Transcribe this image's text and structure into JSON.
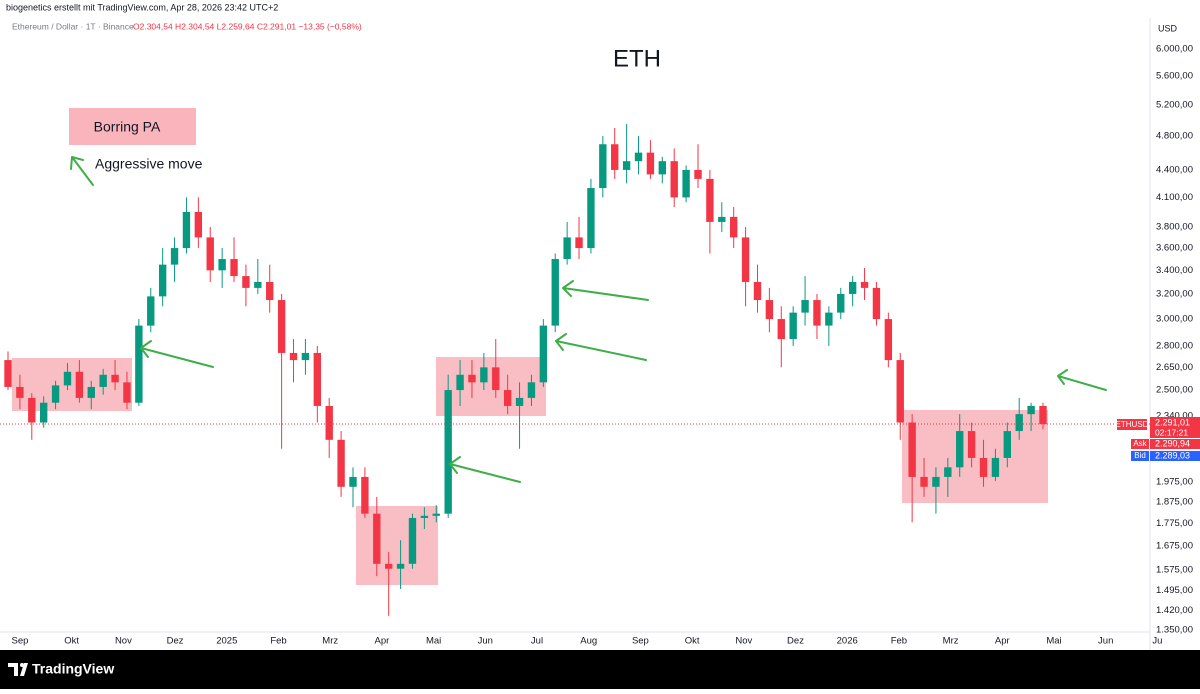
{
  "header": {
    "author_line": "biogenetics erstellt mit TradingView.com, Apr 28, 2026 23:42 UTC+2",
    "symbol": "Ethereum / Dollar · 1T · Binance",
    "quote": "O2.304,54 H2.304,54 L2.259,64 C2.291,01 −13,35 (−0,58%)"
  },
  "chart_data": {
    "type": "candlestick",
    "title": "ETH",
    "currency": "USD",
    "log_scale": true,
    "grid": false,
    "up_color": "#089981",
    "down_color": "#f23645",
    "candles": [
      [
        2700,
        2760,
        2500,
        2520
      ],
      [
        2520,
        2600,
        2380,
        2450
      ],
      [
        2450,
        2480,
        2200,
        2300
      ],
      [
        2300,
        2460,
        2270,
        2420
      ],
      [
        2420,
        2560,
        2380,
        2530
      ],
      [
        2530,
        2680,
        2500,
        2620
      ],
      [
        2620,
        2700,
        2420,
        2450
      ],
      [
        2450,
        2560,
        2380,
        2520
      ],
      [
        2520,
        2640,
        2470,
        2600
      ],
      [
        2600,
        2700,
        2500,
        2550
      ],
      [
        2550,
        2620,
        2380,
        2420
      ],
      [
        2420,
        3000,
        2400,
        2950
      ],
      [
        2950,
        3250,
        2900,
        3180
      ],
      [
        3180,
        3600,
        3100,
        3450
      ],
      [
        3450,
        3700,
        3300,
        3600
      ],
      [
        3600,
        4100,
        3550,
        3950
      ],
      [
        3950,
        4100,
        3600,
        3700
      ],
      [
        3700,
        3800,
        3300,
        3400
      ],
      [
        3400,
        3600,
        3250,
        3500
      ],
      [
        3500,
        3700,
        3300,
        3350
      ],
      [
        3350,
        3450,
        3100,
        3250
      ],
      [
        3250,
        3500,
        3200,
        3300
      ],
      [
        3300,
        3450,
        3050,
        3150
      ],
      [
        3150,
        3200,
        2150,
        2750
      ],
      [
        2750,
        2850,
        2550,
        2700
      ],
      [
        2700,
        2850,
        2600,
        2750
      ],
      [
        2750,
        2800,
        2300,
        2400
      ],
      [
        2400,
        2450,
        2100,
        2200
      ],
      [
        2200,
        2250,
        1900,
        1950
      ],
      [
        1950,
        2050,
        1850,
        2000
      ],
      [
        2000,
        2050,
        1800,
        1820
      ],
      [
        1820,
        1900,
        1550,
        1600
      ],
      [
        1600,
        1650,
        1400,
        1580
      ],
      [
        1580,
        1700,
        1500,
        1600
      ],
      [
        1600,
        1820,
        1580,
        1800
      ],
      [
        1800,
        1850,
        1750,
        1810
      ],
      [
        1810,
        1860,
        1780,
        1820
      ],
      [
        1820,
        2600,
        1800,
        2500
      ],
      [
        2500,
        2700,
        2400,
        2600
      ],
      [
        2600,
        2700,
        2450,
        2550
      ],
      [
        2550,
        2750,
        2500,
        2650
      ],
      [
        2650,
        2850,
        2450,
        2500
      ],
      [
        2500,
        2600,
        2350,
        2400
      ],
      [
        2400,
        2550,
        2150,
        2450
      ],
      [
        2450,
        2600,
        2400,
        2550
      ],
      [
        2550,
        3000,
        2520,
        2950
      ],
      [
        2950,
        3550,
        2900,
        3500
      ],
      [
        3500,
        3850,
        3450,
        3700
      ],
      [
        3700,
        3900,
        3500,
        3600
      ],
      [
        3600,
        4300,
        3550,
        4200
      ],
      [
        4200,
        4800,
        4100,
        4700
      ],
      [
        4700,
        4900,
        4300,
        4400
      ],
      [
        4400,
        4950,
        4250,
        4500
      ],
      [
        4500,
        4800,
        4350,
        4600
      ],
      [
        4600,
        4750,
        4300,
        4350
      ],
      [
        4350,
        4550,
        4250,
        4500
      ],
      [
        4500,
        4650,
        4000,
        4100
      ],
      [
        4100,
        4450,
        4050,
        4400
      ],
      [
        4400,
        4700,
        4200,
        4300
      ],
      [
        4300,
        4400,
        3550,
        3850
      ],
      [
        3850,
        4050,
        3750,
        3900
      ],
      [
        3900,
        4000,
        3600,
        3700
      ],
      [
        3700,
        3800,
        3100,
        3300
      ],
      [
        3300,
        3450,
        3050,
        3150
      ],
      [
        3150,
        3250,
        2900,
        3000
      ],
      [
        3000,
        3100,
        2650,
        2850
      ],
      [
        2850,
        3100,
        2800,
        3050
      ],
      [
        3050,
        3350,
        2950,
        3150
      ],
      [
        3150,
        3200,
        2850,
        2950
      ],
      [
        2950,
        3100,
        2800,
        3050
      ],
      [
        3050,
        3250,
        3000,
        3200
      ],
      [
        3200,
        3350,
        3100,
        3300
      ],
      [
        3300,
        3420,
        3150,
        3250
      ],
      [
        3250,
        3300,
        2950,
        3000
      ],
      [
        3000,
        3050,
        2650,
        2700
      ],
      [
        2700,
        2750,
        2200,
        2300
      ],
      [
        2300,
        2350,
        1780,
        2000
      ],
      [
        2000,
        2100,
        1900,
        1950
      ],
      [
        1950,
        2050,
        1820,
        2000
      ],
      [
        2000,
        2100,
        1900,
        2050
      ],
      [
        2050,
        2350,
        2000,
        2250
      ],
      [
        2250,
        2300,
        2050,
        2100
      ],
      [
        2100,
        2200,
        1950,
        2000
      ],
      [
        2000,
        2150,
        1980,
        2100
      ],
      [
        2100,
        2300,
        2050,
        2250
      ],
      [
        2250,
        2450,
        2200,
        2350
      ],
      [
        2350,
        2420,
        2250,
        2400
      ],
      [
        2400,
        2420,
        2260,
        2291.01
      ]
    ],
    "xtick_labels": [
      "Sep",
      "Okt",
      "Nov",
      "Dez",
      "2025",
      "Feb",
      "Mrz",
      "Apr",
      "Mai",
      "Jun",
      "Jul",
      "Aug",
      "Sep",
      "Okt",
      "Nov",
      "Dez",
      "2026",
      "Feb",
      "Mrz",
      "Apr",
      "Mai",
      "Jun",
      "Ju"
    ],
    "ylim": [
      1343,
      6500
    ],
    "yticks": [
      {
        "value": 6000,
        "label": "6.000,00"
      },
      {
        "value": 5600,
        "label": "5.600,00"
      },
      {
        "value": 5200,
        "label": "5.200,00"
      },
      {
        "value": 4800,
        "label": "4.800,00"
      },
      {
        "value": 4400,
        "label": "4.400,00"
      },
      {
        "value": 4100,
        "label": "4.100,00"
      },
      {
        "value": 3800,
        "label": "3.800,00"
      },
      {
        "value": 3600,
        "label": "3.600,00"
      },
      {
        "value": 3400,
        "label": "3.400,00"
      },
      {
        "value": 3200,
        "label": "3.200,00"
      },
      {
        "value": 3000,
        "label": "3.000,00"
      },
      {
        "value": 2800,
        "label": "2.800,00"
      },
      {
        "value": 2650,
        "label": "2.650,00"
      },
      {
        "value": 2500,
        "label": "2.500,00"
      },
      {
        "value": 2340,
        "label": "2.340,00"
      },
      {
        "value": 1975,
        "label": "1.975,00"
      },
      {
        "value": 1875,
        "label": "1.875,00"
      },
      {
        "value": 1775,
        "label": "1.775,00"
      },
      {
        "value": 1675,
        "label": "1.675,00"
      },
      {
        "value": 1575,
        "label": "1.575,00"
      },
      {
        "value": 1495,
        "label": "1.495,00"
      },
      {
        "value": 1420,
        "label": "1.420,00"
      },
      {
        "value": 1350,
        "label": "1.350,00"
      }
    ],
    "annotations": {
      "legend_box": "Borring PA",
      "legend_arrow": "Aggressive move"
    }
  },
  "price_labels": {
    "symbol": "ETHUSD",
    "last": "2.291,01",
    "countdown": "02:17:21",
    "ask_label": "Ask",
    "ask": "2.290,94",
    "bid_label": "Bid",
    "bid": "2.289,03"
  },
  "footer": {
    "brand": "TradingView"
  }
}
